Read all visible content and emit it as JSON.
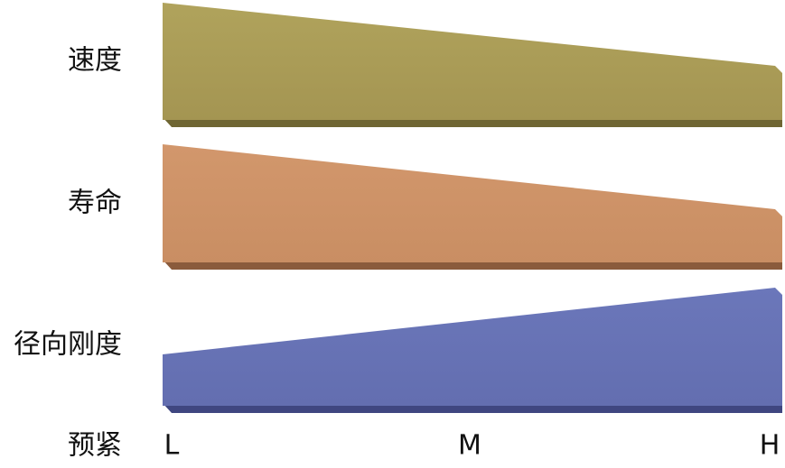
{
  "rows": [
    {
      "label": "速度"
    },
    {
      "label": "寿命"
    },
    {
      "label": "径向刚度"
    }
  ],
  "axis": {
    "label": "预紧",
    "levels": [
      "L",
      "M",
      "H"
    ]
  }
}
